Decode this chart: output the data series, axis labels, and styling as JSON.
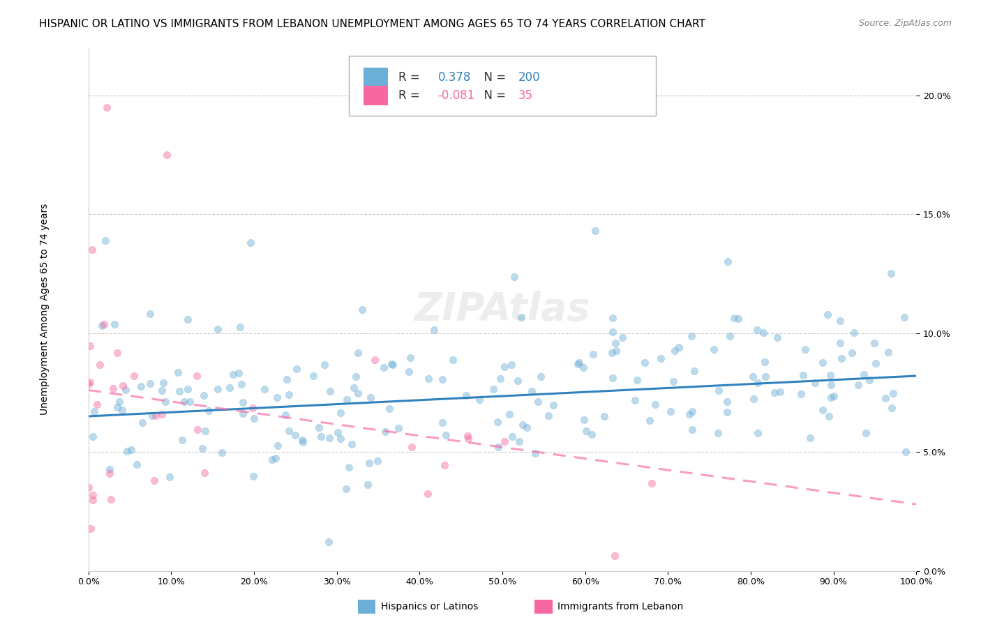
{
  "title": "HISPANIC OR LATINO VS IMMIGRANTS FROM LEBANON UNEMPLOYMENT AMONG AGES 65 TO 74 YEARS CORRELATION CHART",
  "source": "Source: ZipAtlas.com",
  "ylabel": "Unemployment Among Ages 65 to 74 years",
  "xlabel_ticks": [
    "0.0%",
    "10.0%",
    "20.0%",
    "30.0%",
    "40.0%",
    "50.0%",
    "60.0%",
    "70.0%",
    "80.0%",
    "90.0%",
    "100.0%"
  ],
  "ylabel_ticks": [
    "0.0%",
    "5.0%",
    "10.0%",
    "15.0%",
    "20.0%"
  ],
  "xlim": [
    0.0,
    1.0
  ],
  "ylim": [
    0.0,
    0.22
  ],
  "legend_entries": [
    {
      "label": "Hispanics or Latinos",
      "color": "#6baed6",
      "R": "0.378",
      "N": "200"
    },
    {
      "label": "Immigrants from Lebanon",
      "color": "#f768a1",
      "R": "-0.081",
      "N": "35"
    }
  ],
  "watermark": "ZIPAtlas",
  "blue_line_y_start": 0.065,
  "blue_line_y_end": 0.082,
  "pink_line_y_start": 0.076,
  "pink_line_y_end": 0.028,
  "dot_size": 55,
  "dot_alpha": 0.45,
  "line_width": 2.2,
  "grid_color": "#cccccc",
  "title_fontsize": 11,
  "axis_label_fontsize": 10,
  "tick_fontsize": 9,
  "legend_fontsize": 12,
  "watermark_fontsize": 40,
  "watermark_color": "#cccccc",
  "watermark_alpha": 0.35,
  "blue_R": "0.378",
  "blue_N": "200",
  "pink_R": "-0.081",
  "pink_N": "35"
}
